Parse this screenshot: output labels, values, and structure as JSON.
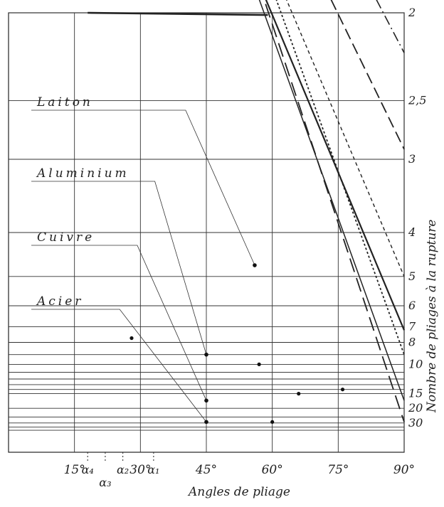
{
  "chart_data": {
    "type": "line",
    "title": "",
    "xlabel": "Angles de pliage",
    "ylabel": "Nombre de pliages à la rupture",
    "xlim": [
      0,
      90
    ],
    "x_ticks": [
      {
        "value": 15,
        "label": "15°"
      },
      {
        "value": 30,
        "label": "30°"
      },
      {
        "value": 45,
        "label": "45°"
      },
      {
        "value": 60,
        "label": "60°"
      },
      {
        "value": 75,
        "label": "75°"
      },
      {
        "value": 90,
        "label": "90°"
      }
    ],
    "y_scale": "reciprocal (distance from bottom proportional to 1/n)",
    "y_ticks": [
      {
        "value": 2,
        "label": "2"
      },
      {
        "value": 2.5,
        "label": "2,5"
      },
      {
        "value": 3,
        "label": "3"
      },
      {
        "value": 4,
        "label": "4"
      },
      {
        "value": 5,
        "label": "5"
      },
      {
        "value": 6,
        "label": "6"
      },
      {
        "value": 7,
        "label": "7"
      },
      {
        "value": 8,
        "label": "8"
      },
      {
        "value": 10,
        "label": "10"
      },
      {
        "value": 15,
        "label": "15"
      },
      {
        "value": 20,
        "label": "20"
      },
      {
        "value": 30,
        "label": "30"
      }
    ],
    "minor_y_lines": [
      9,
      11,
      12,
      13,
      14,
      25,
      35,
      40
    ],
    "alpha_markers": [
      {
        "label": "α₄",
        "x": 18
      },
      {
        "label": "α₃",
        "x": 22
      },
      {
        "label": "α₂",
        "x": 26
      },
      {
        "label": "α₁",
        "x": 33
      }
    ],
    "materials": [
      {
        "name": "Laiton",
        "x": [
          33,
          56
        ],
        "y": [
          2,
          4.7
        ]
      },
      {
        "name": "Aluminium",
        "x": [
          26,
          45
        ],
        "y": [
          2.9,
          9
        ]
      },
      {
        "name": "Cuivre",
        "x": [
          22,
          45
        ],
        "y": [
          5,
          17
        ]
      },
      {
        "name": "Acier",
        "x": [
          18,
          45
        ],
        "y": [
          7.2,
          29
        ]
      }
    ],
    "series": [
      {
        "name": "",
        "x": [
          18,
          59
        ],
        "y": [
          2,
          2.01
        ]
      },
      {
        "name": "",
        "x": [
          33,
          90
        ],
        "y": [
          1,
          2.2
        ]
      },
      {
        "name": "",
        "x": [
          26,
          90
        ],
        "y": [
          1,
          2.9
        ]
      },
      {
        "name": "",
        "x": [
          22,
          90
        ],
        "y": [
          1,
          5
        ]
      },
      {
        "name": "",
        "x": [
          18,
          90
        ],
        "y": [
          1,
          7.2
        ]
      },
      {
        "name": "",
        "x": [
          26,
          90
        ],
        "y": [
          1,
          9
        ]
      },
      {
        "name": "",
        "x": [
          22,
          90
        ],
        "y": [
          1,
          17
        ]
      },
      {
        "name": "",
        "x": [
          26,
          90
        ],
        "y": [
          1,
          29
        ]
      }
    ],
    "marked_points": [
      {
        "x": 56,
        "y": 4.7
      },
      {
        "x": 45,
        "y": 9
      },
      {
        "x": 45,
        "y": 17
      },
      {
        "x": 28,
        "y": 7.7
      },
      {
        "x": 57,
        "y": 10
      },
      {
        "x": 66,
        "y": 15
      },
      {
        "x": 60,
        "y": 29
      },
      {
        "x": 76,
        "y": 14
      }
    ],
    "grid": true,
    "legend": "none"
  }
}
